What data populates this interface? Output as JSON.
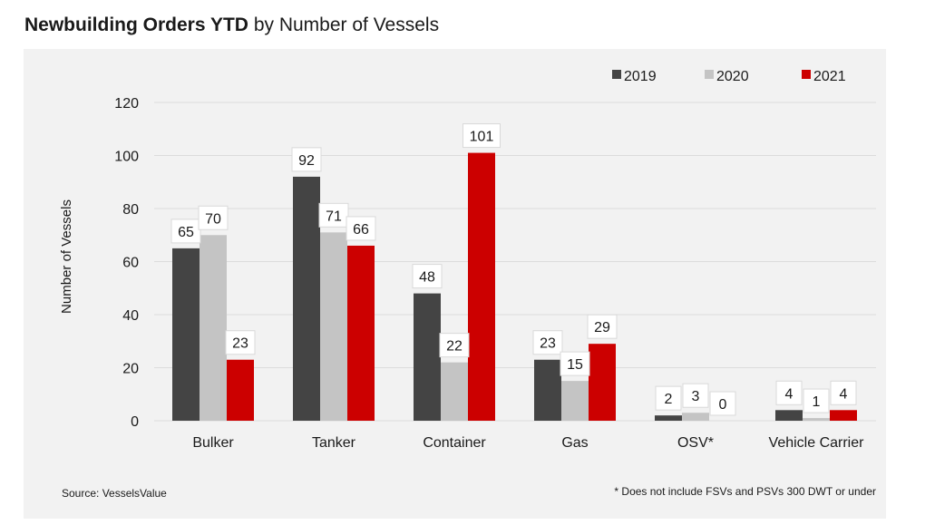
{
  "title": {
    "bold": "Newbuilding Orders YTD",
    "rest": "by Number of Vessels"
  },
  "source": "Source: VesselsValue",
  "footnote": "* Does not include FSVs and PSVs 300 DWT or under",
  "colors": {
    "2019": "#444444",
    "2020": "#c4c4c4",
    "2021": "#cc0000",
    "background": "#f2f2f2",
    "grid": "#dcdcdc"
  },
  "chart_data": {
    "type": "bar",
    "categories": [
      "Bulker",
      "Tanker",
      "Container",
      "Gas",
      "OSV*",
      "Vehicle Carrier"
    ],
    "series": [
      {
        "name": "2019",
        "values": [
          65,
          92,
          48,
          23,
          2,
          4
        ]
      },
      {
        "name": "2020",
        "values": [
          70,
          71,
          22,
          15,
          3,
          1
        ]
      },
      {
        "name": "2021",
        "values": [
          23,
          66,
          101,
          29,
          0,
          4
        ]
      }
    ],
    "ylabel": "Number of Vessels",
    "xlabel": "",
    "ylim": [
      0,
      120
    ],
    "yticks": [
      0,
      20,
      40,
      60,
      80,
      100,
      120
    ],
    "grid": true,
    "legend": "top-right"
  }
}
